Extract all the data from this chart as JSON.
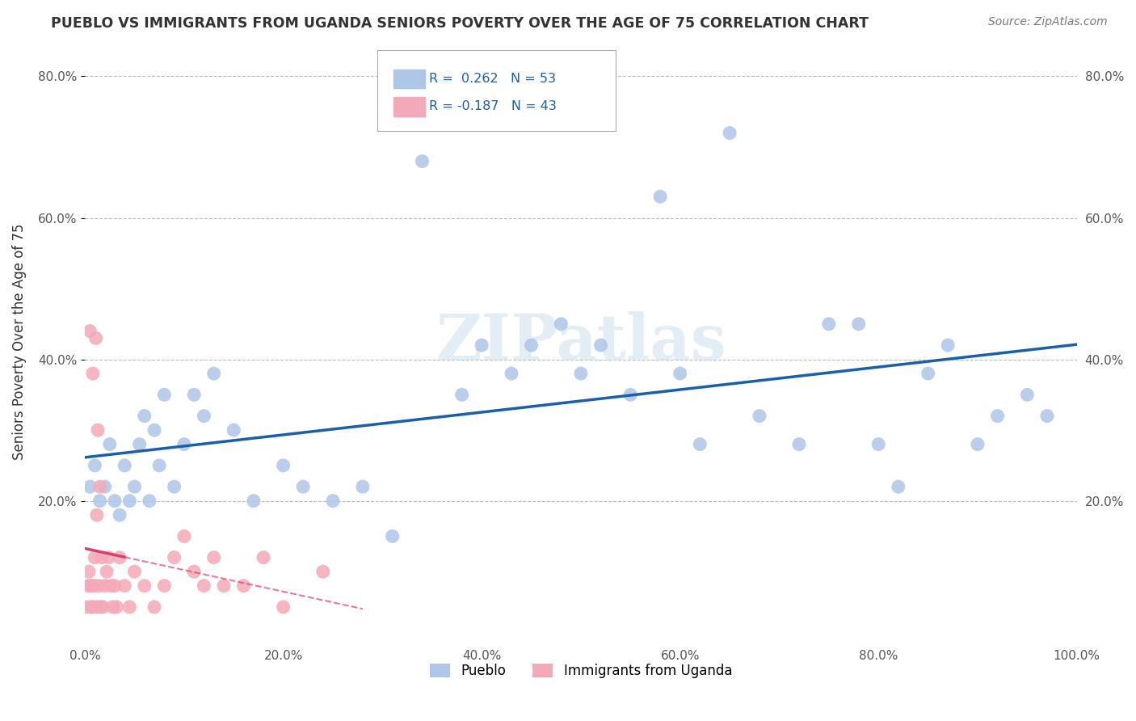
{
  "title": "PUEBLO VS IMMIGRANTS FROM UGANDA SENIORS POVERTY OVER THE AGE OF 75 CORRELATION CHART",
  "source_text": "Source: ZipAtlas.com",
  "ylabel": "Seniors Poverty Over the Age of 75",
  "xlabel": "",
  "legend_labels": [
    "Pueblo",
    "Immigrants from Uganda"
  ],
  "pueblo_R": 0.262,
  "pueblo_N": 53,
  "uganda_R": -0.187,
  "uganda_N": 43,
  "xlim": [
    0.0,
    1.0
  ],
  "ylim": [
    0.0,
    0.85
  ],
  "xticks": [
    0.0,
    0.2,
    0.4,
    0.6,
    0.8,
    1.0
  ],
  "yticks": [
    0.2,
    0.4,
    0.6,
    0.8
  ],
  "ytick_labels": [
    "20.0%",
    "40.0%",
    "60.0%",
    "80.0%"
  ],
  "xtick_labels": [
    "0.0%",
    "20.0%",
    "40.0%",
    "60.0%",
    "80.0%",
    "100.0%"
  ],
  "right_ytick_labels": [
    "20.0%",
    "40.0%",
    "60.0%",
    "80.0%"
  ],
  "right_yticks": [
    0.2,
    0.4,
    0.6,
    0.8
  ],
  "pueblo_color": "#aec6e8",
  "uganda_color": "#f4a9b8",
  "pueblo_line_color": "#1a5faa",
  "uganda_line_color": "#d94070",
  "background_color": "#ffffff",
  "grid_color": "#bbbbbb",
  "watermark": "ZIPatlas",
  "pueblo_x": [
    0.005,
    0.01,
    0.015,
    0.02,
    0.025,
    0.03,
    0.035,
    0.04,
    0.045,
    0.05,
    0.055,
    0.06,
    0.065,
    0.07,
    0.075,
    0.08,
    0.09,
    0.1,
    0.11,
    0.12,
    0.13,
    0.15,
    0.17,
    0.2,
    0.22,
    0.25,
    0.28,
    0.31,
    0.34,
    0.38,
    0.4,
    0.43,
    0.45,
    0.48,
    0.5,
    0.52,
    0.55,
    0.58,
    0.6,
    0.62,
    0.65,
    0.68,
    0.72,
    0.75,
    0.78,
    0.8,
    0.82,
    0.85,
    0.87,
    0.9,
    0.92,
    0.95,
    0.97
  ],
  "pueblo_y": [
    0.22,
    0.25,
    0.2,
    0.22,
    0.28,
    0.2,
    0.18,
    0.25,
    0.2,
    0.22,
    0.28,
    0.32,
    0.2,
    0.3,
    0.25,
    0.35,
    0.22,
    0.28,
    0.35,
    0.32,
    0.38,
    0.3,
    0.2,
    0.25,
    0.22,
    0.2,
    0.22,
    0.15,
    0.68,
    0.35,
    0.42,
    0.38,
    0.42,
    0.45,
    0.38,
    0.42,
    0.35,
    0.63,
    0.38,
    0.28,
    0.72,
    0.32,
    0.28,
    0.45,
    0.45,
    0.28,
    0.22,
    0.38,
    0.42,
    0.28,
    0.32,
    0.35,
    0.32
  ],
  "uganda_x": [
    0.002,
    0.003,
    0.004,
    0.005,
    0.006,
    0.007,
    0.008,
    0.008,
    0.009,
    0.01,
    0.011,
    0.012,
    0.012,
    0.013,
    0.014,
    0.015,
    0.016,
    0.017,
    0.018,
    0.02,
    0.022,
    0.024,
    0.026,
    0.028,
    0.03,
    0.032,
    0.035,
    0.04,
    0.045,
    0.05,
    0.06,
    0.07,
    0.08,
    0.09,
    0.1,
    0.11,
    0.12,
    0.13,
    0.14,
    0.16,
    0.18,
    0.2,
    0.24
  ],
  "uganda_y": [
    0.05,
    0.08,
    0.1,
    0.44,
    0.08,
    0.05,
    0.38,
    0.05,
    0.08,
    0.12,
    0.43,
    0.18,
    0.05,
    0.3,
    0.08,
    0.22,
    0.05,
    0.12,
    0.05,
    0.08,
    0.1,
    0.12,
    0.08,
    0.05,
    0.08,
    0.05,
    0.12,
    0.08,
    0.05,
    0.1,
    0.08,
    0.05,
    0.08,
    0.12,
    0.15,
    0.1,
    0.08,
    0.12,
    0.08,
    0.08,
    0.12,
    0.05,
    0.1
  ]
}
